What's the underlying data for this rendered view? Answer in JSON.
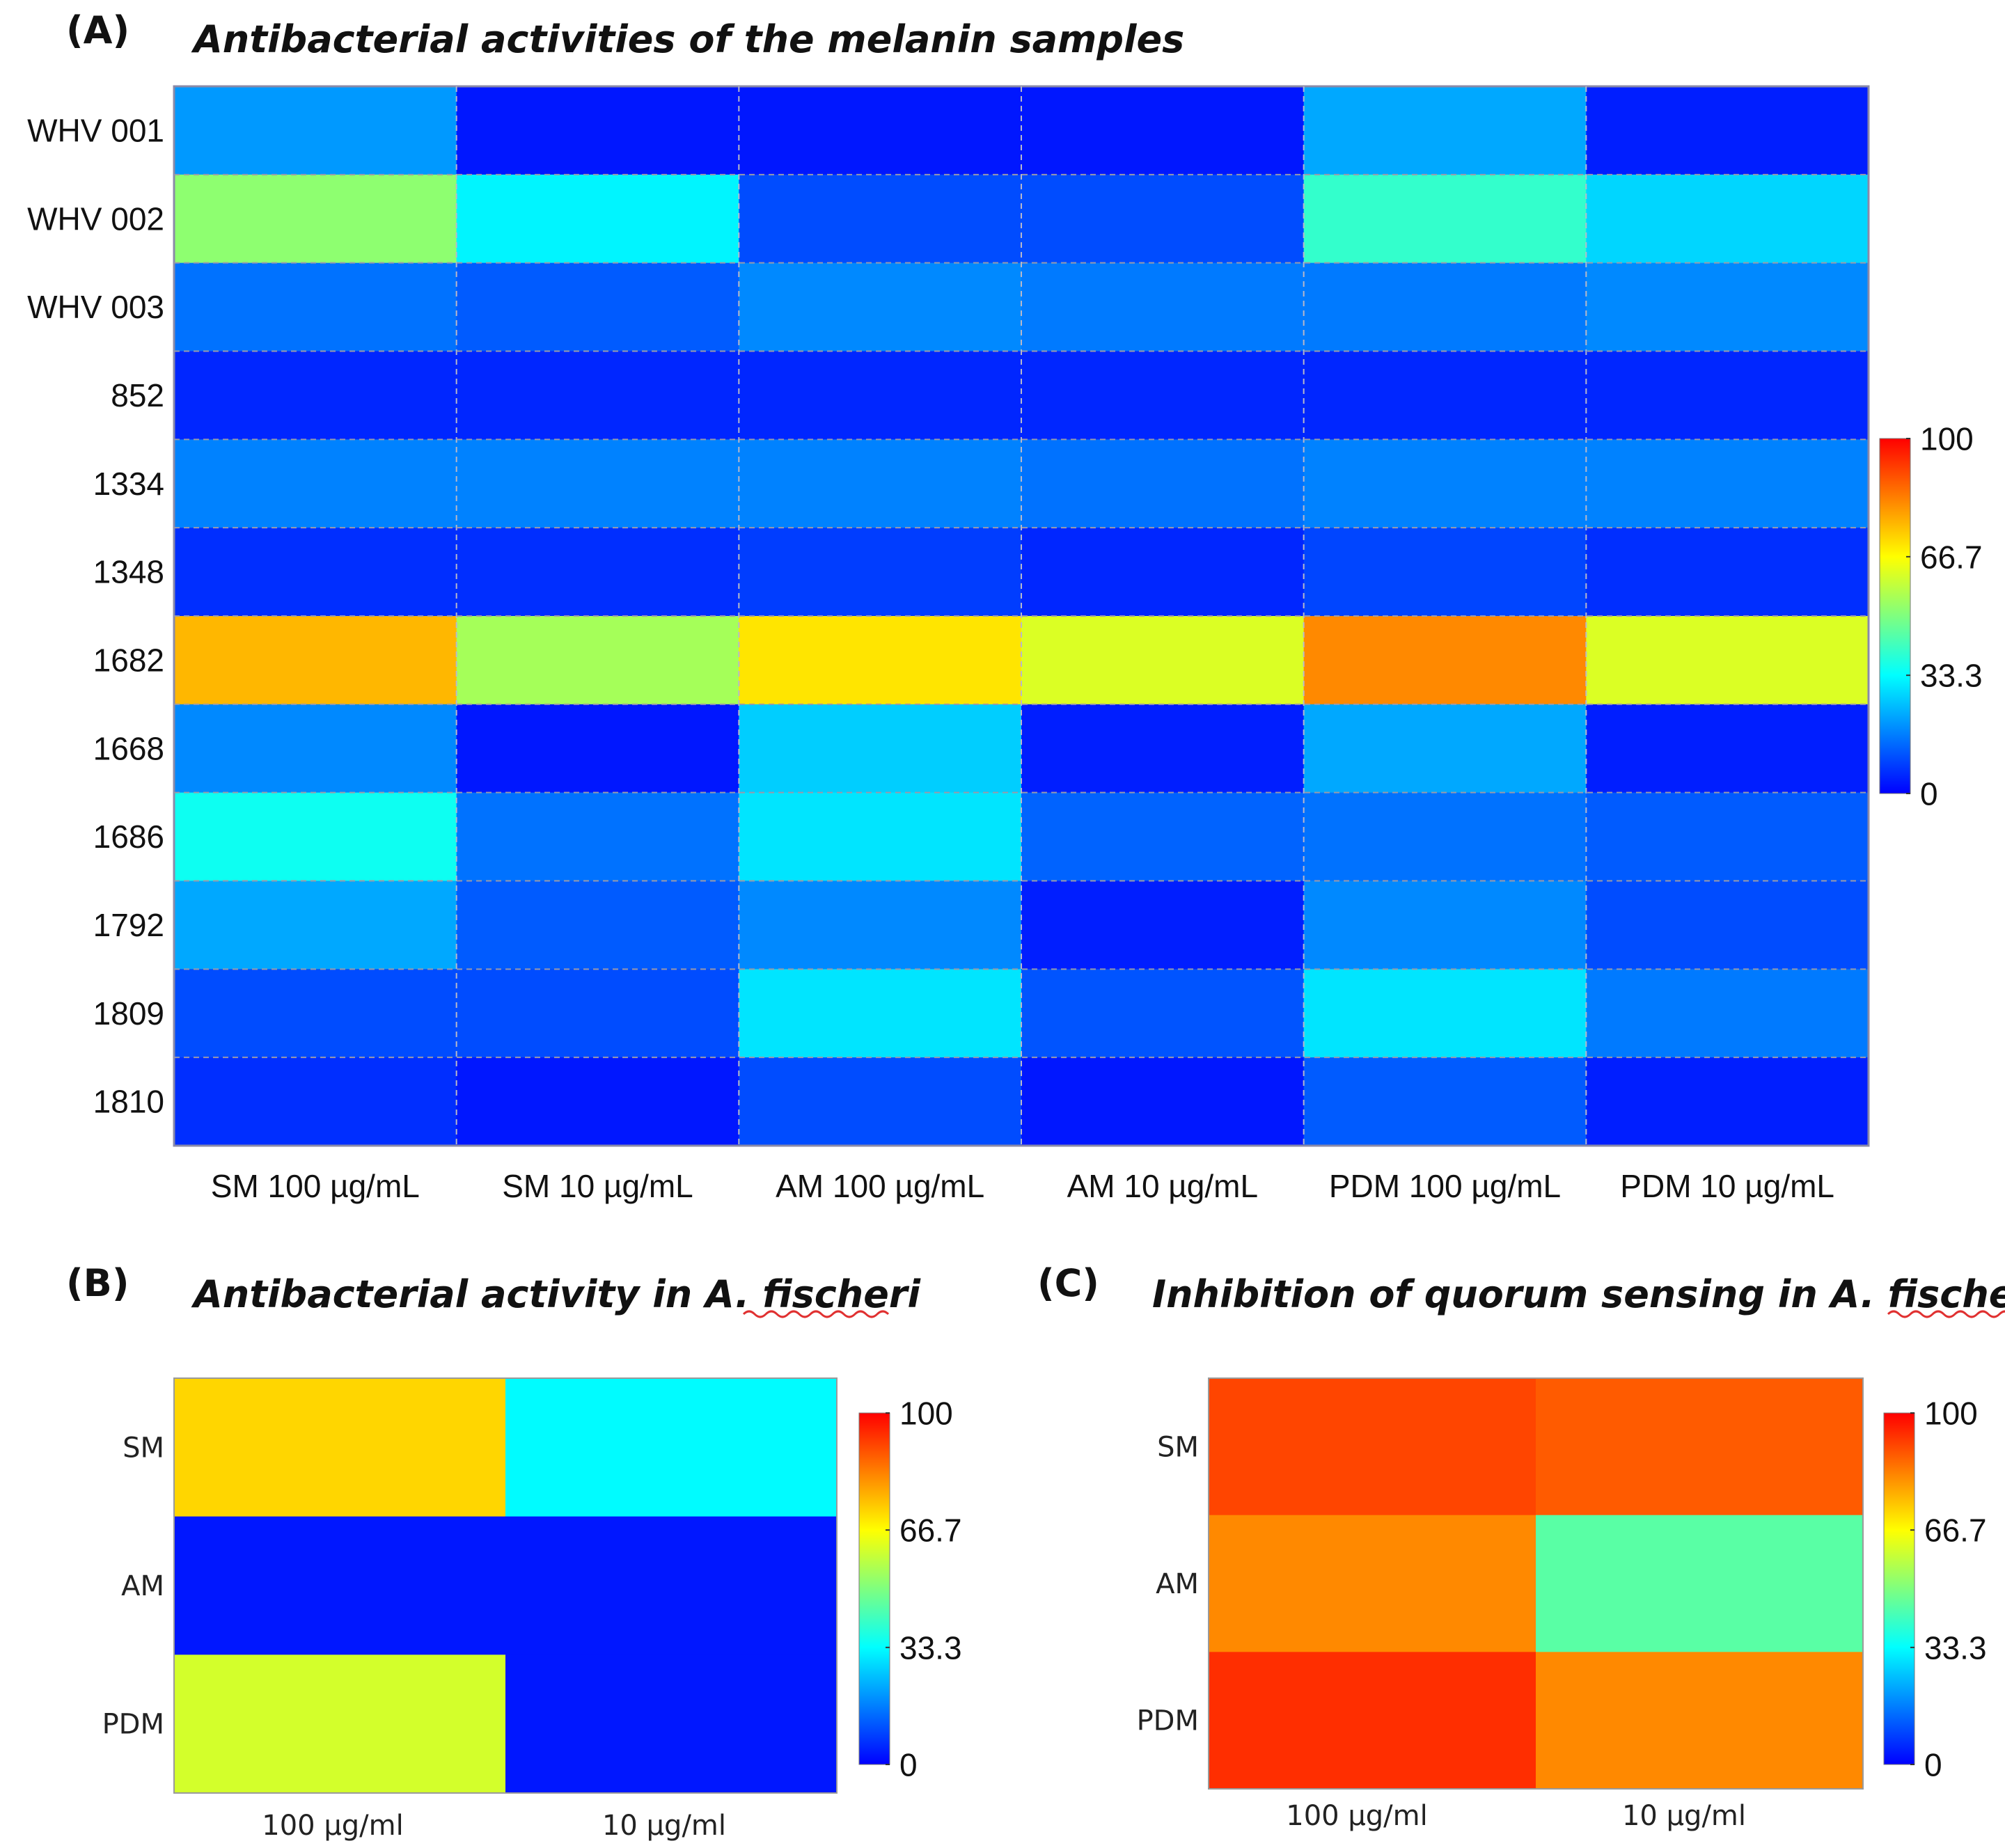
{
  "colorscale": {
    "name": "jet",
    "stops": [
      "#00008f",
      "#0000ff",
      "#007fff",
      "#00ffff",
      "#7fff7f",
      "#ffff00",
      "#ff7f00",
      "#ff0000",
      "#7f0000"
    ]
  },
  "chart_data": [
    {
      "type": "heatmap",
      "panel_label": "(A)",
      "title": "Antibacterial activities of the melanin samples",
      "rows": [
        "WHV 001",
        "WHV 002",
        "WHV 003",
        "852",
        "1334",
        "1348",
        "1682",
        "1668",
        "1686",
        "1792",
        "1809",
        "1810"
      ],
      "columns": [
        "SM 100 µg/mL",
        "SM 10 µg/mL",
        "AM 100 µg/mL",
        "AM 10 µg/mL",
        "PDM 100 µg/mL",
        "PDM 10 µg/mL"
      ],
      "values": [
        [
          20,
          3,
          3,
          3,
          22,
          4
        ],
        [
          52,
          32,
          10,
          10,
          40,
          28
        ],
        [
          15,
          12,
          18,
          16,
          16,
          18
        ],
        [
          5,
          5,
          5,
          5,
          5,
          5
        ],
        [
          17,
          17,
          17,
          15,
          17,
          17
        ],
        [
          6,
          6,
          8,
          5,
          9,
          6
        ],
        [
          76,
          55,
          70,
          62,
          82,
          62
        ],
        [
          18,
          3,
          27,
          4,
          22,
          4
        ],
        [
          35,
          15,
          30,
          13,
          15,
          12
        ],
        [
          22,
          12,
          18,
          4,
          18,
          10
        ],
        [
          10,
          10,
          30,
          11,
          30,
          16
        ],
        [
          6,
          3,
          10,
          3,
          12,
          4
        ]
      ],
      "colorbar": {
        "min": 0,
        "max": 100,
        "ticks": [
          "100",
          "66.7",
          "33.3",
          "0"
        ]
      },
      "grid": "dashed"
    },
    {
      "type": "heatmap",
      "panel_label": "(B)",
      "title": "Antibacterial activity in A. fischeri",
      "rows": [
        "SM",
        "AM",
        "PDM"
      ],
      "columns": [
        "100 µg/ml",
        "10 µg/ml"
      ],
      "values": [
        [
          72,
          33
        ],
        [
          3,
          3
        ],
        [
          61,
          3
        ]
      ],
      "colorbar": {
        "min": 0,
        "max": 100,
        "ticks": [
          "100",
          "66.7",
          "33.3",
          "0"
        ]
      },
      "grid": "none"
    },
    {
      "type": "heatmap",
      "panel_label": "(C)",
      "title": "Inhibition of quorum sensing in A. fischeri",
      "rows": [
        "SM",
        "AM",
        "PDM"
      ],
      "columns": [
        "100 µg/ml",
        "10 µg/ml"
      ],
      "values": [
        [
          91,
          88
        ],
        [
          82,
          45
        ],
        [
          94,
          82
        ]
      ],
      "colorbar": {
        "min": 0,
        "max": 100,
        "ticks": [
          "100",
          "66.7",
          "33.3",
          "0"
        ]
      },
      "grid": "none"
    }
  ]
}
